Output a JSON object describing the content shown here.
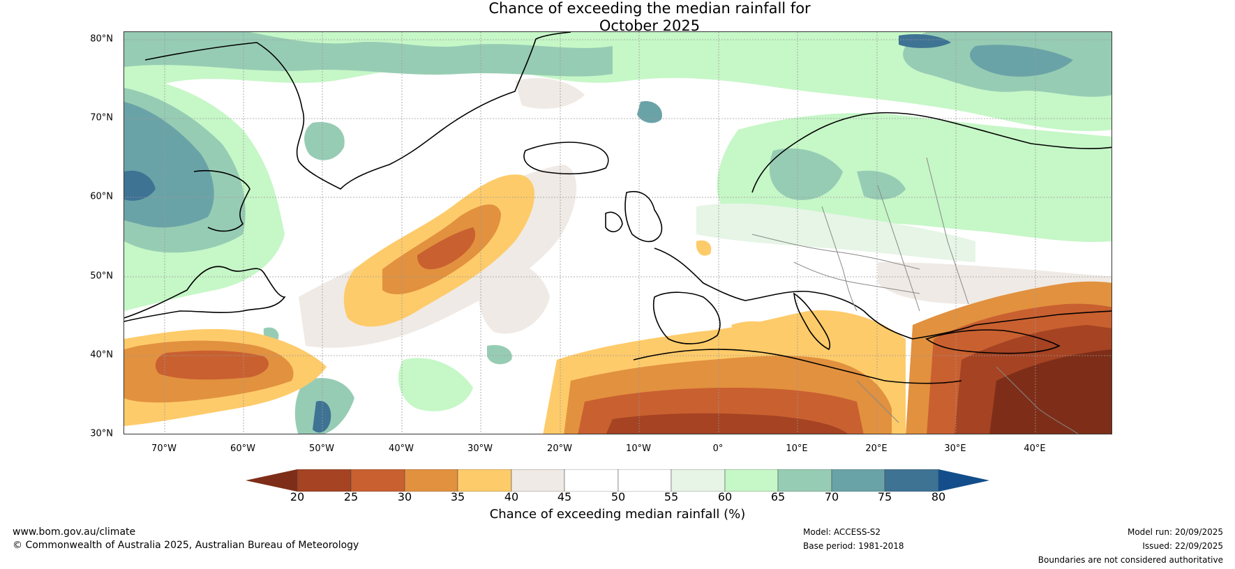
{
  "title": {
    "line1": "Chance of exceeding the median rainfall for",
    "line2": "October 2025"
  },
  "map": {
    "lat_labels": [
      "80°N",
      "70°N",
      "60°N",
      "50°N",
      "40°N",
      "30°N"
    ],
    "lon_labels": [
      "70°W",
      "60°W",
      "50°W",
      "40°W",
      "30°W",
      "20°W",
      "10°W",
      "0°",
      "10°E",
      "20°E",
      "30°E",
      "40°E"
    ]
  },
  "colorbar": {
    "ticks": [
      "20",
      "25",
      "30",
      "35",
      "40",
      "45",
      "50",
      "55",
      "60",
      "65",
      "70",
      "75",
      "80"
    ],
    "colors": [
      "#7e2e18",
      "#a54323",
      "#c96030",
      "#e2913f",
      "#fecb6a",
      "#efeae5",
      "#ffffff",
      "#ffffff",
      "#e6f5e6",
      "#c6f7c7",
      "#97ccb4",
      "#6aa3a7",
      "#3f7394",
      "#134e8a"
    ],
    "label": "Chance of exceeding median rainfall (%)"
  },
  "footer": {
    "website": "www.bom.gov.au/climate",
    "copyright": "© Commonwealth of Australia 2025, Australian Bureau of Meteorology",
    "model": "Model: ACCESS-S2",
    "base_period": "Base period: 1981-2018",
    "model_run": "Model run: 20/09/2025",
    "issued": "Issued: 22/09/2025",
    "disclaimer": "Boundaries are not considered authoritative"
  }
}
